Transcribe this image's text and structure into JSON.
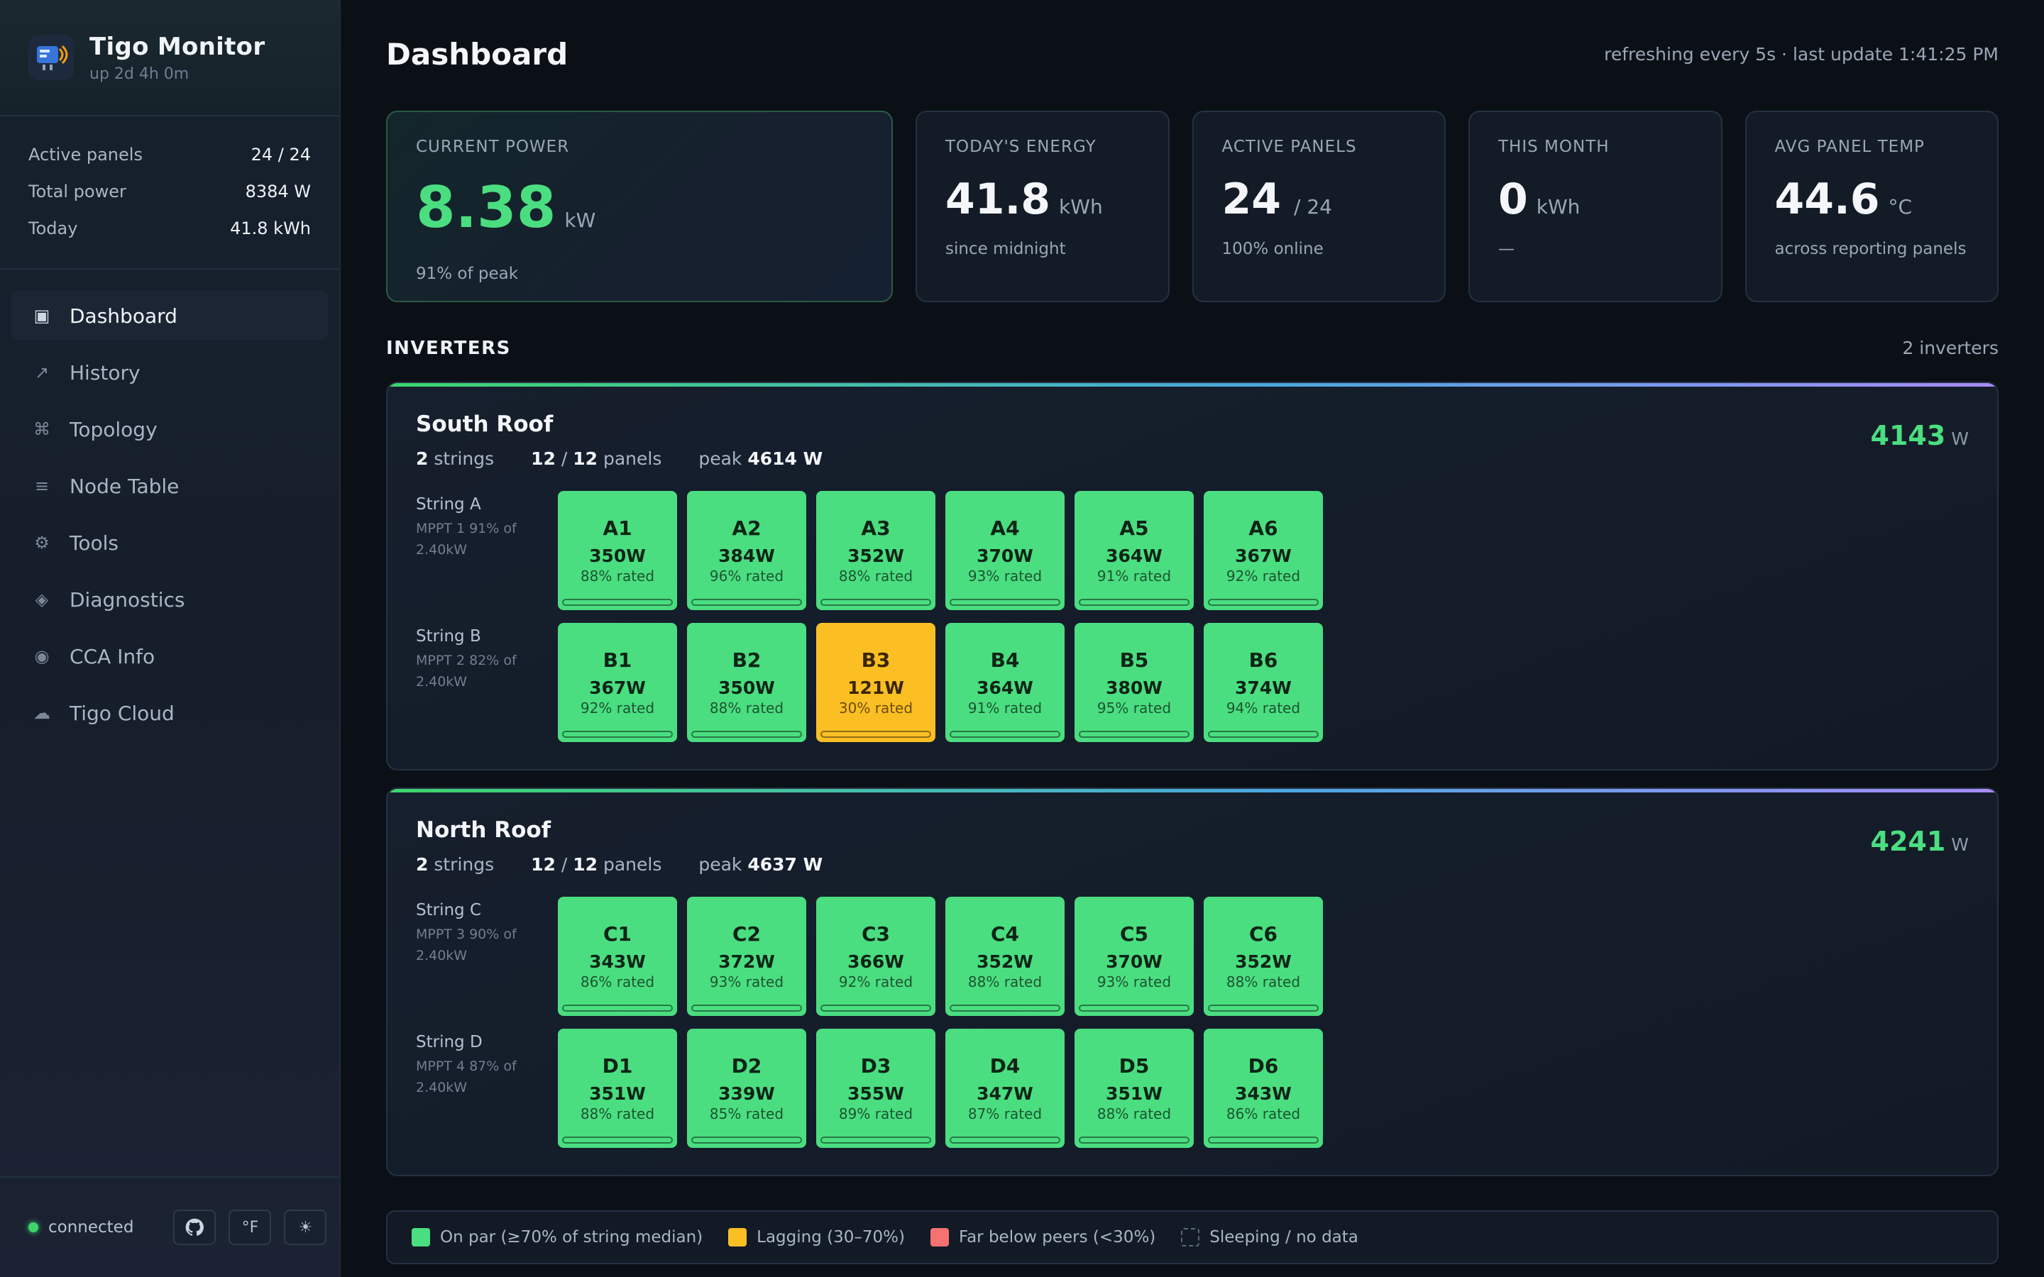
{
  "app": {
    "title": "Tigo Monitor",
    "uptime": "up 2d 4h 0m"
  },
  "sidebar_stats": [
    {
      "label": "Active panels",
      "value": "24 / 24"
    },
    {
      "label": "Total power",
      "value": "8384 W"
    },
    {
      "label": "Today",
      "value": "41.8 kWh"
    }
  ],
  "nav": [
    {
      "label": "Dashboard",
      "icon": "dashboard-icon",
      "glyph": "▣"
    },
    {
      "label": "History",
      "icon": "trend-icon",
      "glyph": "↗"
    },
    {
      "label": "Topology",
      "icon": "topology-icon",
      "glyph": "⌘"
    },
    {
      "label": "Node Table",
      "icon": "list-icon",
      "glyph": "≡"
    },
    {
      "label": "Tools",
      "icon": "gear-icon",
      "glyph": "⚙"
    },
    {
      "label": "Diagnostics",
      "icon": "diamond-icon",
      "glyph": "◈"
    },
    {
      "label": "CCA Info",
      "icon": "target-icon",
      "glyph": "◉"
    },
    {
      "label": "Tigo Cloud",
      "icon": "cloud-icon",
      "glyph": "☁"
    }
  ],
  "footer": {
    "status": "connected",
    "unit_toggle": "°F",
    "theme_glyph": "☀",
    "github_icon": "github-icon"
  },
  "header": {
    "title": "Dashboard",
    "refresh": "refreshing every 5s · last update 1:41:25 PM"
  },
  "cards": [
    {
      "label": "Current Power",
      "value": "8.38",
      "unit": "kW",
      "sub": "91% of peak"
    },
    {
      "label": "Today's Energy",
      "value": "41.8",
      "unit": "kWh",
      "sub": "since midnight"
    },
    {
      "label": "Active Panels",
      "value": "24",
      "unit": "/ 24",
      "sub": "100% online"
    },
    {
      "label": "This Month",
      "value": "0",
      "unit": "kWh",
      "sub": "—"
    },
    {
      "label": "Avg Panel Temp",
      "value": "44.6",
      "unit": "°C",
      "sub": "across reporting panels"
    }
  ],
  "inverters_section": {
    "title": "INVERTERS",
    "count": "2 inverters"
  },
  "inverters": [
    {
      "name": "South Roof",
      "strings": "2",
      "strings_word": "strings",
      "active": "12",
      "total": "12",
      "panels_word": "panels",
      "peak_word": "peak",
      "peak": "4614 W",
      "power": "4143",
      "power_unit": "W",
      "string_rows": [
        {
          "name": "String A",
          "meta": "MPPT 1 91% of 2.40kW",
          "panels": [
            {
              "id": "A1",
              "watts": "350W",
              "rated": "88% rated",
              "status": "ok"
            },
            {
              "id": "A2",
              "watts": "384W",
              "rated": "96% rated",
              "status": "ok"
            },
            {
              "id": "A3",
              "watts": "352W",
              "rated": "88% rated",
              "status": "ok"
            },
            {
              "id": "A4",
              "watts": "370W",
              "rated": "93% rated",
              "status": "ok"
            },
            {
              "id": "A5",
              "watts": "364W",
              "rated": "91% rated",
              "status": "ok"
            },
            {
              "id": "A6",
              "watts": "367W",
              "rated": "92% rated",
              "status": "ok"
            }
          ]
        },
        {
          "name": "String B",
          "meta": "MPPT 2 82% of 2.40kW",
          "panels": [
            {
              "id": "B1",
              "watts": "367W",
              "rated": "92% rated",
              "status": "ok"
            },
            {
              "id": "B2",
              "watts": "350W",
              "rated": "88% rated",
              "status": "ok"
            },
            {
              "id": "B3",
              "watts": "121W",
              "rated": "30% rated",
              "status": "lag"
            },
            {
              "id": "B4",
              "watts": "364W",
              "rated": "91% rated",
              "status": "ok"
            },
            {
              "id": "B5",
              "watts": "380W",
              "rated": "95% rated",
              "status": "ok"
            },
            {
              "id": "B6",
              "watts": "374W",
              "rated": "94% rated",
              "status": "ok"
            }
          ]
        }
      ]
    },
    {
      "name": "North Roof",
      "strings": "2",
      "strings_word": "strings",
      "active": "12",
      "total": "12",
      "panels_word": "panels",
      "peak_word": "peak",
      "peak": "4637 W",
      "power": "4241",
      "power_unit": "W",
      "string_rows": [
        {
          "name": "String C",
          "meta": "MPPT 3 90% of 2.40kW",
          "panels": [
            {
              "id": "C1",
              "watts": "343W",
              "rated": "86% rated",
              "status": "ok"
            },
            {
              "id": "C2",
              "watts": "372W",
              "rated": "93% rated",
              "status": "ok"
            },
            {
              "id": "C3",
              "watts": "366W",
              "rated": "92% rated",
              "status": "ok"
            },
            {
              "id": "C4",
              "watts": "352W",
              "rated": "88% rated",
              "status": "ok"
            },
            {
              "id": "C5",
              "watts": "370W",
              "rated": "93% rated",
              "status": "ok"
            },
            {
              "id": "C6",
              "watts": "352W",
              "rated": "88% rated",
              "status": "ok"
            }
          ]
        },
        {
          "name": "String D",
          "meta": "MPPT 4 87% of 2.40kW",
          "panels": [
            {
              "id": "D1",
              "watts": "351W",
              "rated": "88% rated",
              "status": "ok"
            },
            {
              "id": "D2",
              "watts": "339W",
              "rated": "85% rated",
              "status": "ok"
            },
            {
              "id": "D3",
              "watts": "355W",
              "rated": "89% rated",
              "status": "ok"
            },
            {
              "id": "D4",
              "watts": "347W",
              "rated": "87% rated",
              "status": "ok"
            },
            {
              "id": "D5",
              "watts": "351W",
              "rated": "88% rated",
              "status": "ok"
            },
            {
              "id": "D6",
              "watts": "343W",
              "rated": "86% rated",
              "status": "ok"
            }
          ]
        }
      ]
    }
  ],
  "legend": [
    {
      "swatch": "green",
      "label": "On par (≥70% of string median)"
    },
    {
      "swatch": "yellow",
      "label": "Lagging (30–70%)"
    },
    {
      "swatch": "red",
      "label": "Far below peers (<30%)"
    },
    {
      "swatch": "sleep",
      "label": "Sleeping / no data"
    }
  ],
  "colors": {
    "accent": "#4ade80",
    "lagging": "#fbbf24",
    "far_below": "#f87171",
    "background": "#0b1017"
  }
}
